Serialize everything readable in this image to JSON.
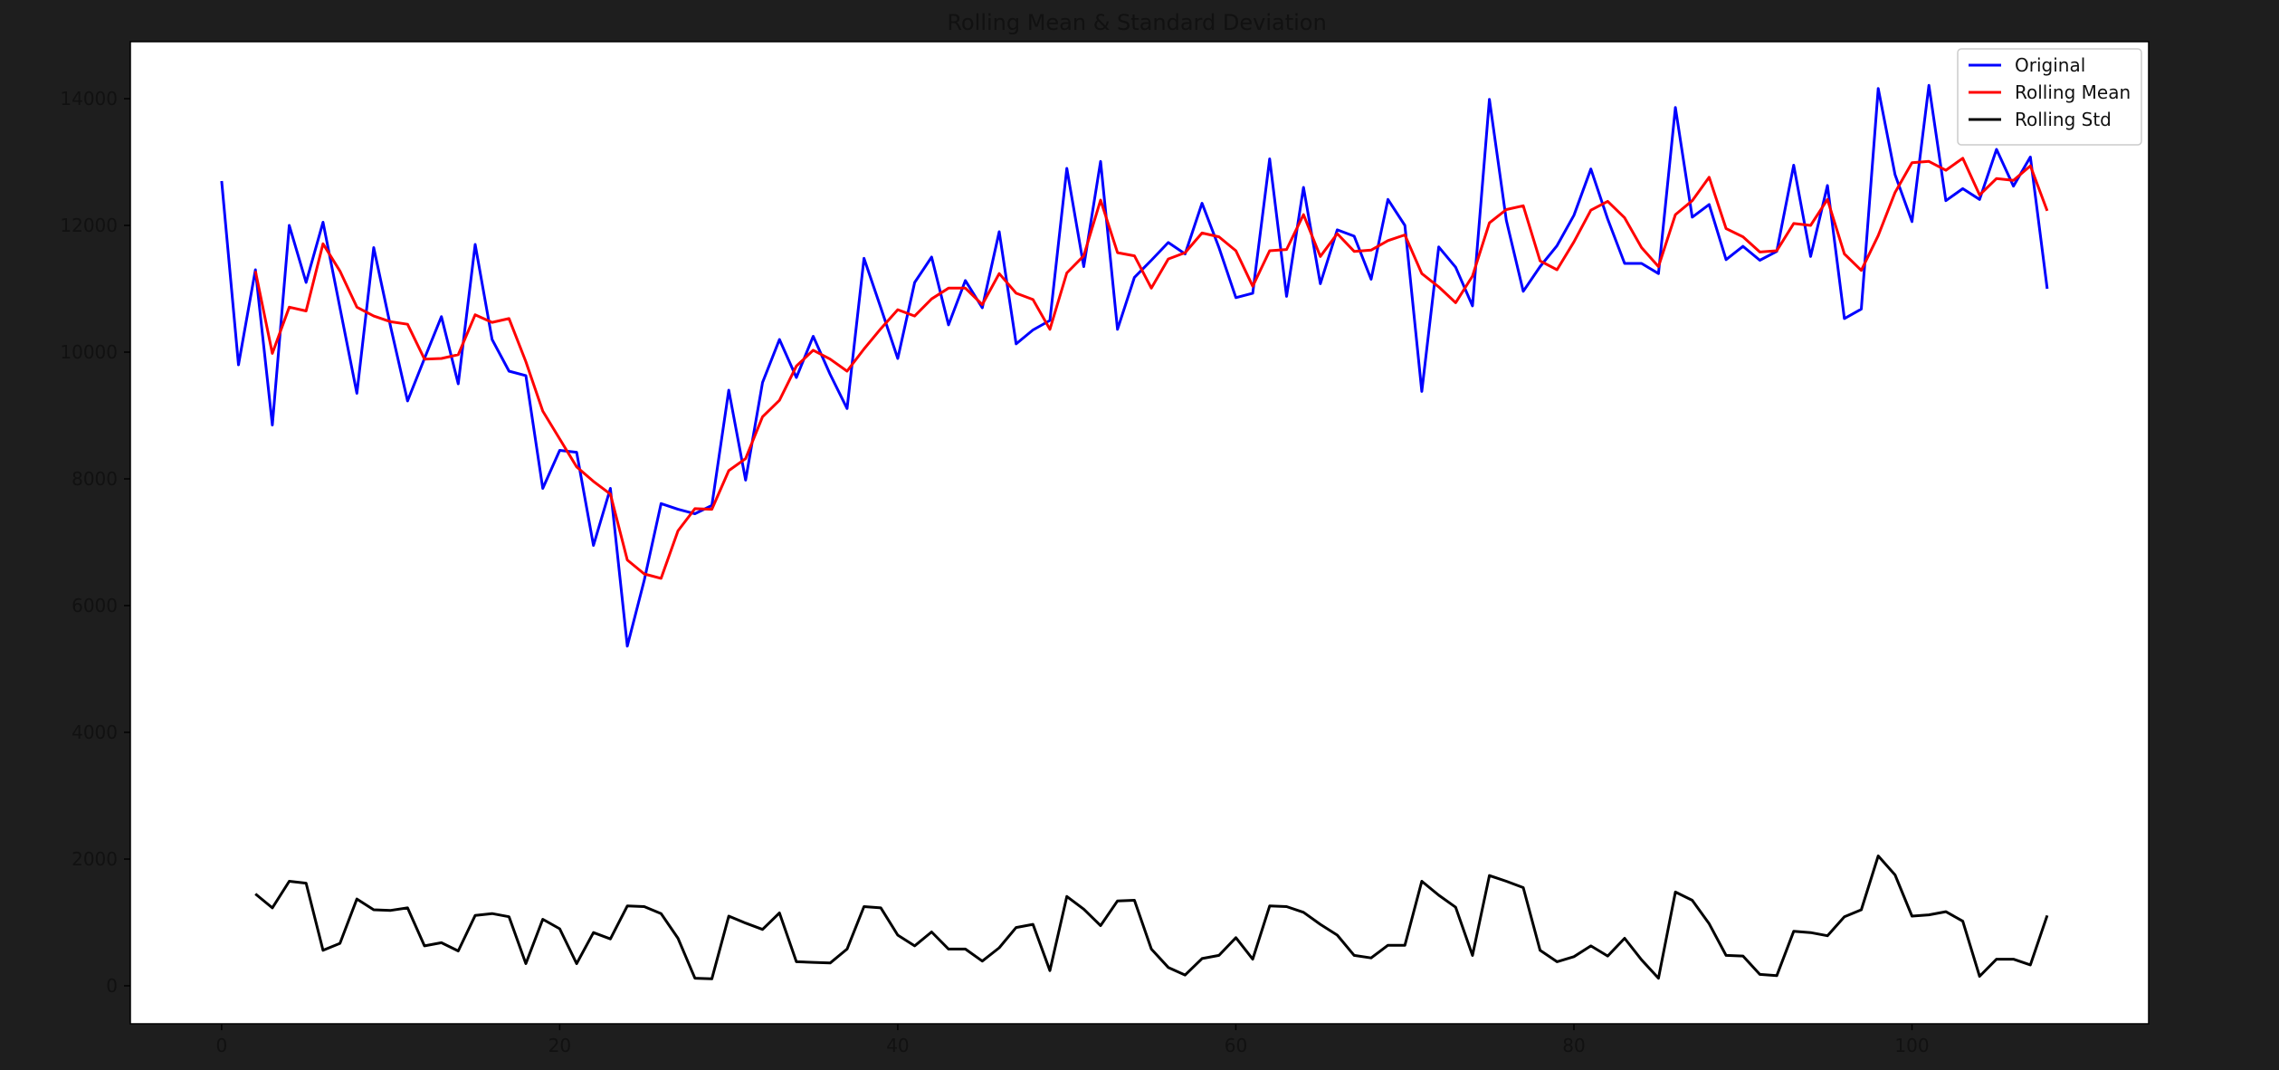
{
  "chart_data": {
    "type": "line",
    "title": "Rolling Mean & Standard Deviation",
    "xlabel": "",
    "ylabel": "",
    "xlim": [
      -5.4,
      114
    ],
    "ylim": [
      -600,
      14900
    ],
    "grid": false,
    "legend_position": "top-right",
    "x_ticks": [
      0,
      20,
      40,
      60,
      80,
      100
    ],
    "y_ticks": [
      0,
      2000,
      4000,
      6000,
      8000,
      10000,
      12000,
      14000
    ],
    "x_tick_labels": [
      "0",
      "20",
      "40",
      "60",
      "80",
      "100"
    ],
    "y_tick_labels": [
      "0",
      "2000",
      "4000",
      "6000",
      "8000",
      "10000",
      "12000",
      "14000"
    ],
    "series": [
      {
        "name": "Original",
        "color": "#0000ff",
        "x_start": 0,
        "values": [
          12700,
          9800,
          11300,
          8850,
          12000,
          11100,
          12050,
          10700,
          9350,
          11650,
          10400,
          9230,
          9900,
          10560,
          9500,
          11700,
          10200,
          9700,
          9630,
          7850,
          8450,
          8420,
          6950,
          7850,
          5360,
          6400,
          7610,
          7520,
          7450,
          7580,
          9400,
          7980,
          9520,
          10200,
          9600,
          10250,
          9650,
          9110,
          11480,
          10700,
          9900,
          11100,
          11500,
          10430,
          11130,
          10700,
          11900,
          10130,
          10350,
          10500,
          12900,
          11350,
          13010,
          10360,
          11180,
          11450,
          11730,
          11550,
          12350,
          11650,
          10860,
          10930,
          13050,
          10880,
          12600,
          11080,
          11930,
          11830,
          11150,
          12410,
          12000,
          9380,
          11660,
          11340,
          10730,
          13990,
          12080,
          10960,
          11350,
          11680,
          12160,
          12890,
          12100,
          11400,
          11400,
          11240,
          13860,
          12130,
          12330,
          11460,
          11670,
          11450,
          11590,
          12950,
          11510,
          12630,
          10530,
          10680,
          14160,
          12800,
          12060,
          14210,
          12390,
          12580,
          12410,
          13200,
          12620,
          13080,
          11000
        ]
      },
      {
        "name": "Rolling Mean",
        "color": "#ff0000",
        "x_start": 2,
        "values": [
          11280,
          9980,
          10710,
          10650,
          11710,
          11280,
          10710,
          10570,
          10480,
          10440,
          9890,
          9900,
          9960,
          10590,
          10470,
          10530,
          9850,
          9070,
          8630,
          8190,
          7960,
          7760,
          6720,
          6500,
          6430,
          7180,
          7530,
          7520,
          8130,
          8320,
          8980,
          9240,
          9780,
          10030,
          9890,
          9700,
          10050,
          10370,
          10670,
          10570,
          10840,
          11010,
          11010,
          10750,
          11240,
          10930,
          10830,
          10360,
          11250,
          11520,
          12400,
          11570,
          11520,
          11010,
          11470,
          11570,
          11880,
          11820,
          11600,
          11040,
          11600,
          11620,
          12170,
          11510,
          11870,
          11590,
          11610,
          11760,
          11850,
          11240,
          11030,
          10780,
          11200,
          12040,
          12250,
          12310,
          11440,
          11300,
          11740,
          12240,
          12380,
          12120,
          11650,
          11350,
          12170,
          12390,
          12760,
          11950,
          11820,
          11580,
          11600,
          12030,
          12000,
          12410,
          11550,
          11290,
          11840,
          12520,
          12990,
          13010,
          12870,
          13060,
          12480,
          12740,
          12710,
          12940,
          12230
        ]
      },
      {
        "name": "Rolling Std",
        "color": "#000000",
        "x_start": 2,
        "values": [
          1450,
          1230,
          1650,
          1620,
          560,
          670,
          1370,
          1200,
          1190,
          1230,
          630,
          680,
          550,
          1110,
          1140,
          1090,
          350,
          1050,
          900,
          350,
          840,
          740,
          1260,
          1250,
          1140,
          750,
          120,
          110,
          1100,
          990,
          890,
          1150,
          380,
          370,
          360,
          580,
          1250,
          1230,
          800,
          630,
          850,
          580,
          580,
          390,
          600,
          920,
          970,
          240,
          1410,
          1210,
          950,
          1340,
          1350,
          580,
          290,
          170,
          430,
          480,
          760,
          420,
          1260,
          1250,
          1160,
          970,
          800,
          480,
          440,
          640,
          640,
          1650,
          1430,
          1240,
          480,
          1740,
          1650,
          1550,
          560,
          380,
          460,
          630,
          470,
          750,
          410,
          120,
          1480,
          1350,
          980,
          480,
          470,
          180,
          160,
          860,
          840,
          790,
          1090,
          1200,
          2050,
          1750,
          1100,
          1120,
          1170,
          1020,
          150,
          420,
          420,
          330,
          1110
        ]
      }
    ]
  }
}
